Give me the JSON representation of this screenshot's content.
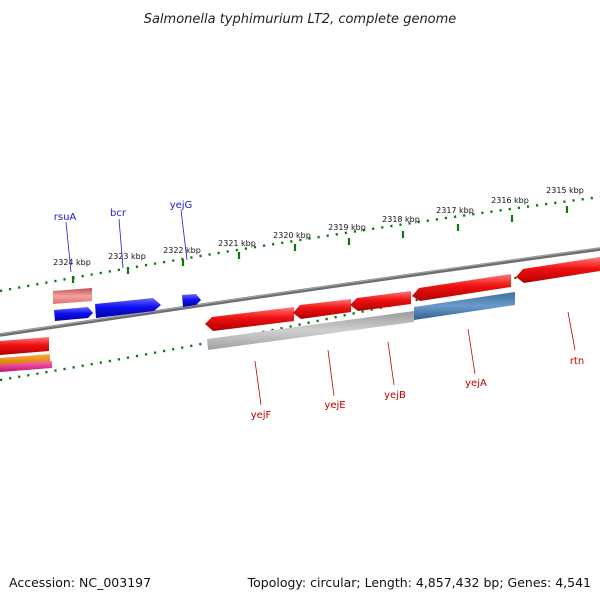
{
  "title": "Salmonella typhimurium LT2, complete genome",
  "accession": "Accession: NC_003197",
  "topology": "Topology: circular; Length: 4,857,432 bp; Genes: 4,541",
  "kbp_ticks": [
    "2324 kbp",
    "2323 kbp",
    "2322 kbp",
    "2321 kbp",
    "2320 kbp",
    "2319 kbp",
    "2318 kbp",
    "2317 kbp",
    "2316 kbp",
    "2315 kbp"
  ],
  "forward_genes": [
    "rsuA",
    "bcr",
    "yejG"
  ],
  "reverse_genes": [
    "yejF",
    "yejE",
    "yejB",
    "yejA",
    "rtn"
  ],
  "colors": {
    "forward_gene": "#1010ee",
    "reverse_gene": "#ee1111",
    "forward_label": "#1a1ad6",
    "reverse_label": "#c40000",
    "ruler": "#0a7a0a",
    "backbone": "#7a7a7a",
    "rrna": "#e88080",
    "grey_feature": "#b8b8b8",
    "steel_feature": "#4f86b8",
    "orange_feature": "#f08c00",
    "magenta_feature": "#e0208a"
  }
}
